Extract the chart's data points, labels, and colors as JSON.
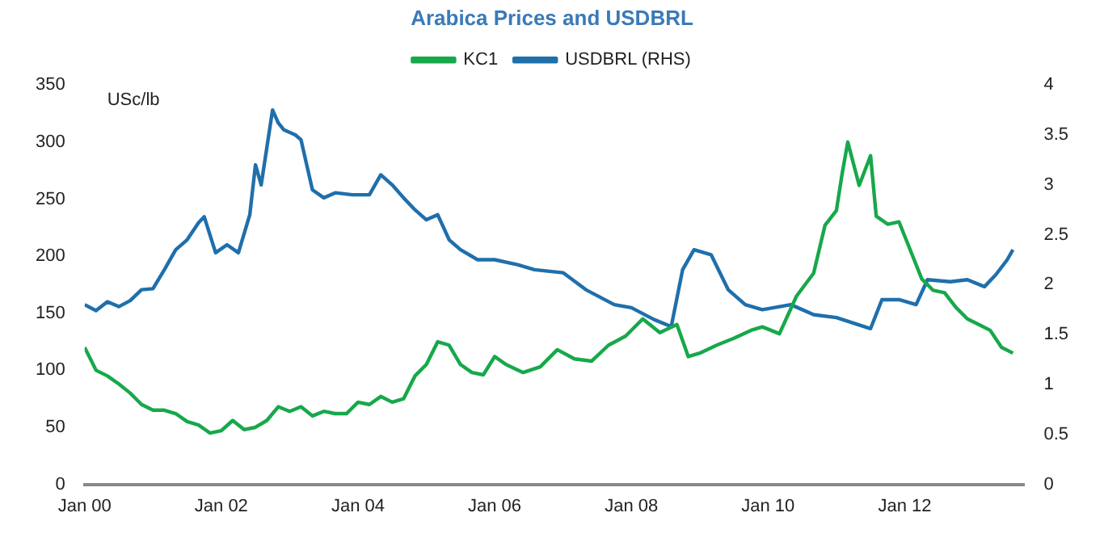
{
  "chart_data": {
    "type": "line",
    "title": "Arabica Prices and USDBRL",
    "ylabel": "USc/lb",
    "xlim": [
      "2000-01",
      "2013-10"
    ],
    "xticks": [
      {
        "value": "2000-01",
        "label": "Jan 00"
      },
      {
        "value": "2002-01",
        "label": "Jan 02"
      },
      {
        "value": "2004-01",
        "label": "Jan 04"
      },
      {
        "value": "2006-01",
        "label": "Jan 06"
      },
      {
        "value": "2008-01",
        "label": "Jan 08"
      },
      {
        "value": "2010-01",
        "label": "Jan 10"
      },
      {
        "value": "2012-01",
        "label": "Jan 12"
      }
    ],
    "ylim": [
      0,
      350
    ],
    "yticks": [
      0,
      50,
      100,
      150,
      200,
      250,
      300,
      350
    ],
    "y2lim": [
      0,
      4
    ],
    "y2ticks": [
      0,
      0.5,
      1,
      1.5,
      2,
      2.5,
      3,
      3.5,
      4
    ],
    "grid": false,
    "legend": "top",
    "marker": "none",
    "line_style": "solid",
    "series": [
      {
        "name": "KC1",
        "color": "#17a84b",
        "x": [
          "2000-01",
          "2000-03",
          "2000-05",
          "2000-07",
          "2000-09",
          "2000-11",
          "2001-01",
          "2001-03",
          "2001-05",
          "2001-07",
          "2001-09",
          "2001-11",
          "2002-01",
          "2002-03",
          "2002-05",
          "2002-07",
          "2002-09",
          "2002-11",
          "2003-01",
          "2003-03",
          "2003-05",
          "2003-07",
          "2003-09",
          "2003-11",
          "2004-01",
          "2004-03",
          "2004-05",
          "2004-07",
          "2004-09",
          "2004-11",
          "2005-01",
          "2005-03",
          "2005-05",
          "2005-07",
          "2005-09",
          "2005-11",
          "2006-01",
          "2006-03",
          "2006-06",
          "2006-09",
          "2006-12",
          "2007-03",
          "2007-06",
          "2007-09",
          "2007-12",
          "2008-03",
          "2008-06",
          "2008-09",
          "2008-11",
          "2009-01",
          "2009-04",
          "2009-07",
          "2009-10",
          "2009-12",
          "2010-03",
          "2010-06",
          "2010-09",
          "2010-11",
          "2011-01",
          "2011-02",
          "2011-03",
          "2011-05",
          "2011-07",
          "2011-08",
          "2011-10",
          "2011-12",
          "2012-02",
          "2012-04",
          "2012-06",
          "2012-08",
          "2012-10",
          "2012-12",
          "2013-02",
          "2013-04",
          "2013-06",
          "2013-08"
        ],
        "values": [
          120,
          100,
          95,
          88,
          80,
          70,
          65,
          65,
          62,
          55,
          52,
          45,
          47,
          56,
          48,
          50,
          56,
          68,
          64,
          68,
          60,
          64,
          62,
          62,
          72,
          70,
          77,
          72,
          75,
          95,
          105,
          125,
          122,
          105,
          98,
          96,
          112,
          105,
          98,
          103,
          118,
          110,
          108,
          122,
          130,
          145,
          133,
          140,
          112,
          115,
          122,
          128,
          135,
          138,
          132,
          165,
          185,
          227,
          240,
          272,
          300,
          262,
          288,
          235,
          228,
          230,
          205,
          180,
          170,
          168,
          155,
          145,
          140,
          135,
          120,
          115
        ]
      },
      {
        "name": "USDBRL (RHS)",
        "color": "#1f6fab",
        "axis": "y2",
        "x": [
          "2000-01",
          "2000-03",
          "2000-05",
          "2000-07",
          "2000-09",
          "2000-11",
          "2001-01",
          "2001-03",
          "2001-05",
          "2001-07",
          "2001-09",
          "2001-10",
          "2001-11",
          "2001-12",
          "2002-02",
          "2002-04",
          "2002-06",
          "2002-07",
          "2002-08",
          "2002-10",
          "2002-11",
          "2002-12",
          "2003-02",
          "2003-03",
          "2003-05",
          "2003-07",
          "2003-09",
          "2003-12",
          "2004-03",
          "2004-05",
          "2004-07",
          "2004-09",
          "2004-11",
          "2005-01",
          "2005-03",
          "2005-05",
          "2005-07",
          "2005-10",
          "2006-01",
          "2006-05",
          "2006-08",
          "2007-01",
          "2007-05",
          "2007-10",
          "2008-01",
          "2008-05",
          "2008-08",
          "2008-10",
          "2008-12",
          "2009-03",
          "2009-06",
          "2009-09",
          "2009-12",
          "2010-05",
          "2010-09",
          "2011-01",
          "2011-07",
          "2011-09",
          "2011-12",
          "2012-03",
          "2012-05",
          "2012-09",
          "2012-12",
          "2013-03",
          "2013-05",
          "2013-07",
          "2013-08"
        ],
        "values": [
          1.8,
          1.74,
          1.83,
          1.78,
          1.84,
          1.95,
          1.96,
          2.15,
          2.35,
          2.45,
          2.62,
          2.68,
          2.5,
          2.32,
          2.4,
          2.32,
          2.7,
          3.2,
          3.0,
          3.75,
          3.62,
          3.55,
          3.5,
          3.45,
          2.95,
          2.87,
          2.92,
          2.9,
          2.9,
          3.1,
          3.0,
          2.87,
          2.75,
          2.65,
          2.7,
          2.45,
          2.35,
          2.25,
          2.25,
          2.2,
          2.15,
          2.12,
          1.95,
          1.8,
          1.77,
          1.65,
          1.58,
          2.15,
          2.35,
          2.3,
          1.95,
          1.8,
          1.75,
          1.8,
          1.7,
          1.67,
          1.56,
          1.85,
          1.85,
          1.8,
          2.05,
          2.03,
          2.05,
          1.98,
          2.1,
          2.25,
          2.35
        ]
      }
    ]
  }
}
